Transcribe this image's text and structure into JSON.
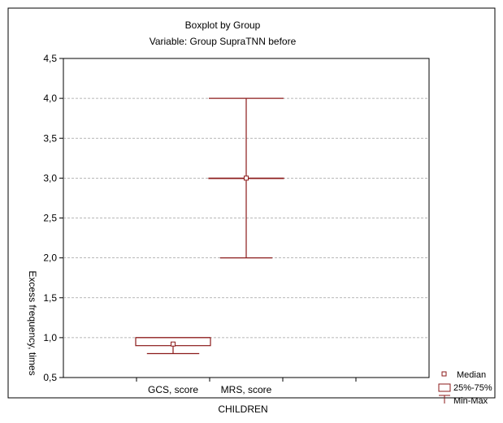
{
  "chart_data": {
    "type": "boxplot",
    "title": "Boxplot by Group",
    "subtitle": "Variable: Group SupraTNN  before",
    "xlabel": "CHILDREN",
    "ylabel": "Excess frequency, times",
    "ylim": [
      0.5,
      4.5
    ],
    "yticks": [
      "0,5",
      "1,0",
      "1,5",
      "2,0",
      "2,5",
      "3,0",
      "3,5",
      "4,0",
      "4,5"
    ],
    "ytick_values": [
      0.5,
      1.0,
      1.5,
      2.0,
      2.5,
      3.0,
      3.5,
      4.0,
      4.5
    ],
    "categories": [
      "GCS, score",
      "MRS, score"
    ],
    "groups": [
      {
        "label": "GCS, score",
        "min": 0.8,
        "q1": 0.9,
        "median": 0.92,
        "q3": 1.0,
        "max": 1.0
      },
      {
        "label": "MRS, score",
        "min": 2.0,
        "q1": 3.0,
        "median": 3.0,
        "q3": 3.0,
        "max": 4.0
      }
    ],
    "grid": true,
    "legend": {
      "position": "bottom-right",
      "entries": [
        "Median",
        "25%-75%",
        "Min-Max"
      ]
    },
    "colors": {
      "box": "#8b1a1a",
      "grid": "#a0a0a0",
      "frame": "#000000"
    }
  }
}
